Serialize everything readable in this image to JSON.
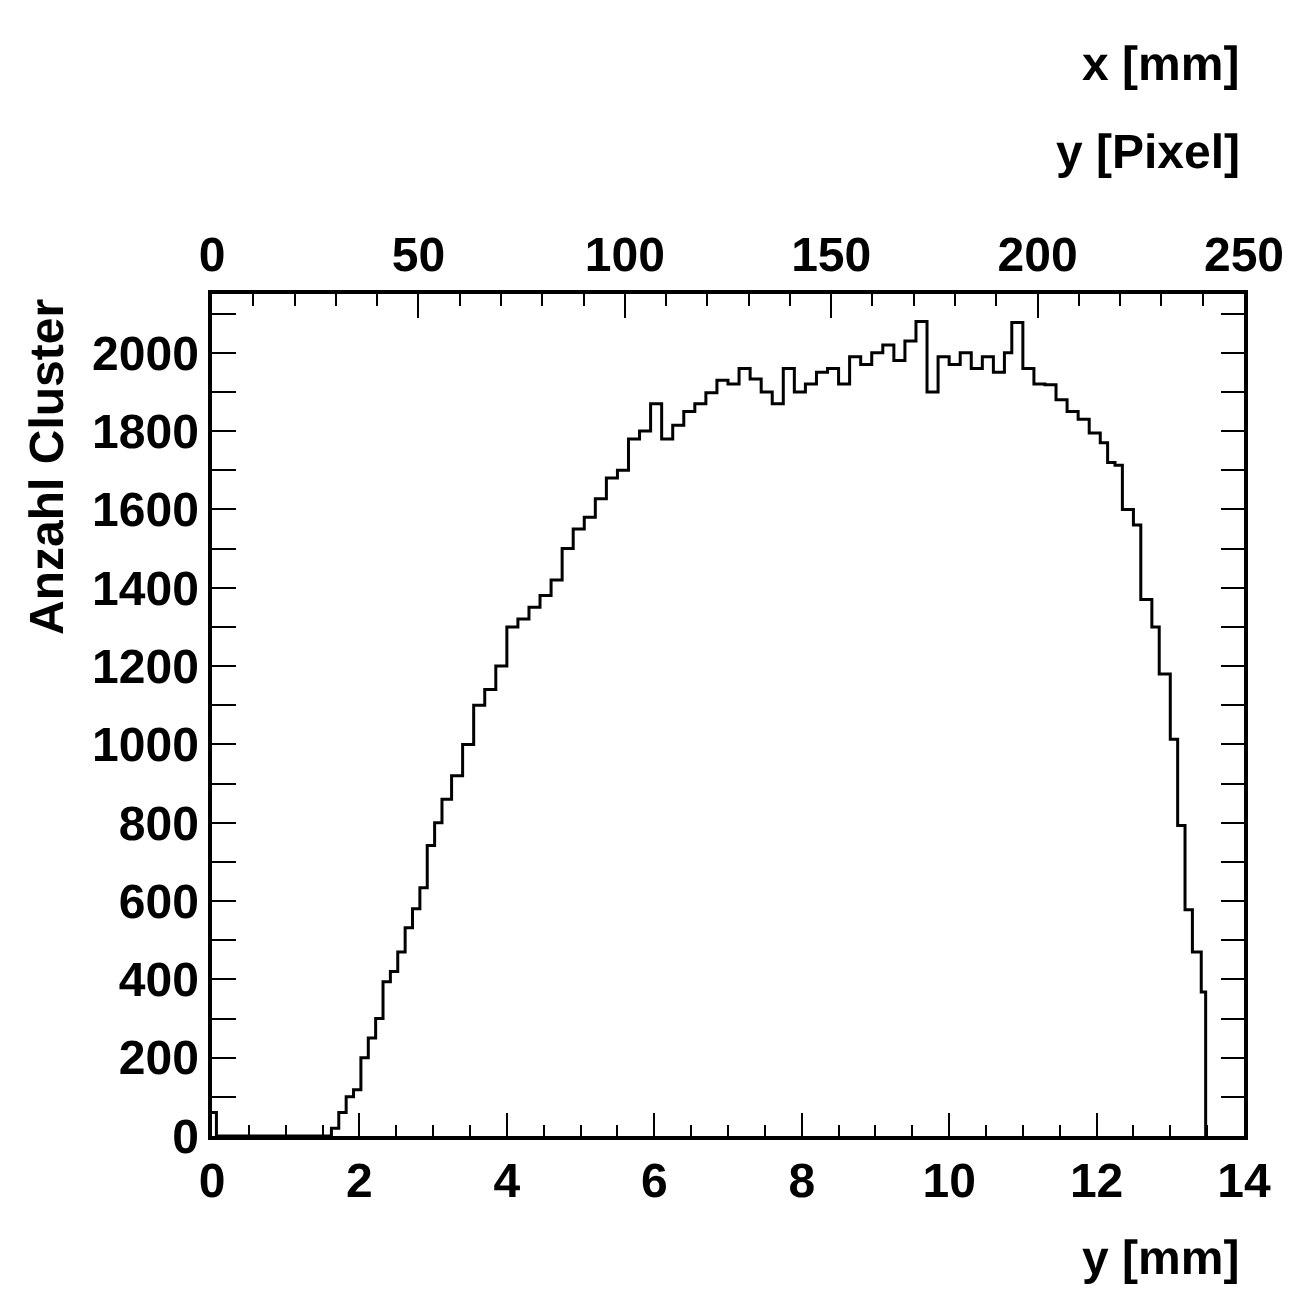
{
  "chart_data": {
    "type": "step",
    "x": [
      0,
      0.06,
      1.62,
      1.72,
      1.82,
      1.92,
      2.02,
      2.12,
      2.22,
      2.32,
      2.42,
      2.52,
      2.62,
      2.72,
      2.82,
      2.92,
      3.02,
      3.12,
      3.25,
      3.4,
      3.55,
      3.7,
      3.85,
      4.0,
      4.15,
      4.3,
      4.45,
      4.6,
      4.75,
      4.9,
      5.05,
      5.2,
      5.35,
      5.5,
      5.65,
      5.8,
      5.95,
      6.1,
      6.25,
      6.4,
      6.55,
      6.7,
      6.85,
      7.0,
      7.15,
      7.3,
      7.45,
      7.6,
      7.75,
      7.9,
      8.05,
      8.2,
      8.35,
      8.5,
      8.65,
      8.8,
      8.95,
      9.1,
      9.25,
      9.4,
      9.55,
      9.7,
      9.85,
      10.0,
      10.15,
      10.3,
      10.45,
      10.6,
      10.75,
      10.85,
      11.0,
      11.15,
      11.3,
      11.45,
      11.6,
      11.75,
      11.9,
      12.05,
      12.15,
      12.25,
      12.35,
      12.5,
      12.6,
      12.75,
      12.85,
      13.0,
      13.1,
      13.2,
      13.3,
      13.42,
      13.48
    ],
    "values": [
      60,
      0,
      20,
      60,
      100,
      118,
      200,
      250,
      300,
      394,
      420,
      470,
      532,
      580,
      634,
      742,
      800,
      860,
      920,
      1000,
      1100,
      1140,
      1200,
      1300,
      1320,
      1350,
      1380,
      1420,
      1500,
      1550,
      1580,
      1627,
      1680,
      1700,
      1780,
      1800,
      1870,
      1780,
      1815,
      1850,
      1870,
      1898,
      1930,
      1920,
      1960,
      1933,
      1900,
      1870,
      1960,
      1900,
      1920,
      1950,
      1960,
      1920,
      1990,
      1970,
      2000,
      2020,
      1980,
      2030,
      2080,
      1900,
      1990,
      1970,
      2000,
      1960,
      1990,
      1950,
      2000,
      2077,
      1960,
      1920,
      1918,
      1880,
      1850,
      1830,
      1795,
      1770,
      1720,
      1713,
      1600,
      1560,
      1370,
      1300,
      1180,
      1013,
      793,
      578,
      470,
      368,
      0
    ],
    "color": "#000000",
    "xlabel": "y [mm]",
    "ylabel": "Anzahl Cluster",
    "x2label": "y [Pixel]",
    "annotations": [
      "x [mm]"
    ],
    "xlim": [
      0,
      14
    ],
    "xticks": [
      0,
      2,
      4,
      6,
      8,
      10,
      12,
      14
    ],
    "x2lim": [
      0,
      250
    ],
    "x2ticks": [
      0,
      50,
      100,
      150,
      200,
      250
    ],
    "ylim": [
      0,
      2150
    ],
    "yticks": [
      0,
      200,
      400,
      600,
      800,
      1000,
      1200,
      1400,
      1600,
      1800,
      2000
    ],
    "legend": false,
    "marker": "none",
    "line_style": "solid"
  }
}
